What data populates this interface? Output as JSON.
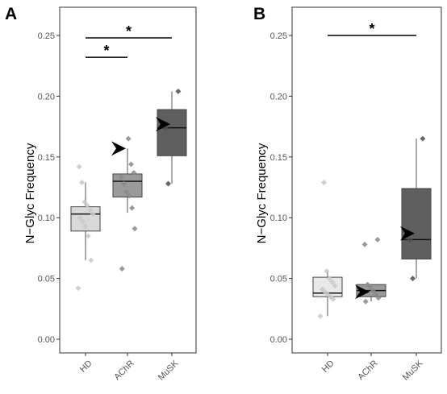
{
  "chart_data": [
    {
      "type": "box",
      "panel_label": "A",
      "ylabel": "N−Glyc Frequency",
      "xlabel": "",
      "ylim": [
        0,
        0.25
      ],
      "y_ticks": [
        "0.00",
        "0.05",
        "0.10",
        "0.15",
        "0.20",
        "0.25"
      ],
      "categories": [
        "HD",
        "AChR",
        "MuSK"
      ],
      "grid": false,
      "boxes": [
        {
          "name": "HD",
          "color": "#d9d9d9",
          "whisker_low": 0.065,
          "q1": 0.089,
          "median": 0.103,
          "q3": 0.109,
          "whisker_high": 0.129
        },
        {
          "name": "AChR",
          "color": "#9a9a9a",
          "whisker_low": 0.104,
          "q1": 0.117,
          "median": 0.13,
          "q3": 0.136,
          "whisker_high": 0.157
        },
        {
          "name": "MuSK",
          "color": "#5f5f5f",
          "whisker_low": 0.128,
          "q1": 0.151,
          "median": 0.174,
          "q3": 0.189,
          "whisker_high": 0.204
        }
      ],
      "points": [
        {
          "category": "HD",
          "values": [
            0.042,
            0.065,
            0.085,
            0.093,
            0.097,
            0.1,
            0.103,
            0.106,
            0.11,
            0.113,
            0.129,
            0.142
          ]
        },
        {
          "category": "AChR",
          "values": [
            0.058,
            0.091,
            0.108,
            0.118,
            0.121,
            0.128,
            0.133,
            0.137,
            0.144,
            0.165
          ]
        },
        {
          "category": "MuSK",
          "values": [
            0.128,
            0.174,
            0.204
          ]
        }
      ],
      "arrows": [
        {
          "category": "AChR",
          "y": 0.157
        },
        {
          "category": "MuSK",
          "y": 0.177
        }
      ],
      "significance": [
        {
          "from": "HD",
          "to": "MuSK",
          "y": 0.248,
          "label": "*"
        },
        {
          "from": "HD",
          "to": "AChR",
          "y": 0.232,
          "label": "*"
        }
      ]
    },
    {
      "type": "box",
      "panel_label": "B",
      "ylabel": "N−Glyc Frequency",
      "xlabel": "",
      "ylim": [
        0,
        0.25
      ],
      "y_ticks": [
        "0.00",
        "0.05",
        "0.10",
        "0.15",
        "0.20",
        "0.25"
      ],
      "categories": [
        "HD",
        "AChR",
        "MuSK"
      ],
      "grid": false,
      "boxes": [
        {
          "name": "HD",
          "color": "#e8e8e8",
          "whisker_low": 0.019,
          "q1": 0.035,
          "median": 0.038,
          "q3": 0.051,
          "whisker_high": 0.056
        },
        {
          "name": "AChR",
          "color": "#9a9a9a",
          "whisker_low": 0.031,
          "q1": 0.035,
          "median": 0.04,
          "q3": 0.045,
          "whisker_high": 0.045
        },
        {
          "name": "MuSK",
          "color": "#5f5f5f",
          "whisker_low": 0.05,
          "q1": 0.066,
          "median": 0.082,
          "q3": 0.124,
          "whisker_high": 0.165
        }
      ],
      "points": [
        {
          "category": "HD",
          "values": [
            0.019,
            0.033,
            0.035,
            0.037,
            0.039,
            0.041,
            0.044,
            0.047,
            0.05,
            0.056,
            0.129
          ]
        },
        {
          "category": "AChR",
          "values": [
            0.031,
            0.034,
            0.037,
            0.04,
            0.043,
            0.045,
            0.078,
            0.082
          ]
        },
        {
          "category": "MuSK",
          "values": [
            0.05,
            0.082,
            0.165
          ]
        }
      ],
      "arrows": [
        {
          "category": "AChR",
          "y": 0.039
        },
        {
          "category": "MuSK",
          "y": 0.087
        }
      ],
      "significance": [
        {
          "from": "HD",
          "to": "MuSK",
          "y": 0.25,
          "label": "*"
        }
      ]
    }
  ]
}
